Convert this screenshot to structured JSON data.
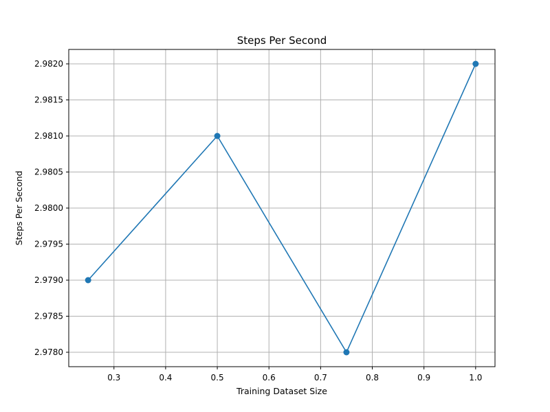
{
  "chart_data": {
    "type": "line",
    "title": "Steps Per Second",
    "xlabel": "Training Dataset Size",
    "ylabel": "Steps Per Second",
    "x": [
      0.25,
      0.5,
      0.75,
      1.0
    ],
    "series": [
      {
        "values": [
          2.979,
          2.981,
          2.978,
          2.982
        ],
        "color": "#1f77b4",
        "marker": "circle"
      }
    ],
    "xlim": [
      0.2125,
      1.0375
    ],
    "ylim": [
      2.9778,
      2.9822
    ],
    "xticks": [
      0.3,
      0.4,
      0.5,
      0.6,
      0.7,
      0.8,
      0.9,
      1.0
    ],
    "xtick_labels": [
      "0.3",
      "0.4",
      "0.5",
      "0.6",
      "0.7",
      "0.8",
      "0.9",
      "1.0"
    ],
    "yticks": [
      2.978,
      2.9785,
      2.979,
      2.9795,
      2.98,
      2.9805,
      2.981,
      2.9815,
      2.982
    ],
    "ytick_labels": [
      "2.9780",
      "2.9785",
      "2.9790",
      "2.9795",
      "2.9800",
      "2.9805",
      "2.9810",
      "2.9815",
      "2.9820"
    ],
    "grid": true,
    "legend": "none"
  }
}
